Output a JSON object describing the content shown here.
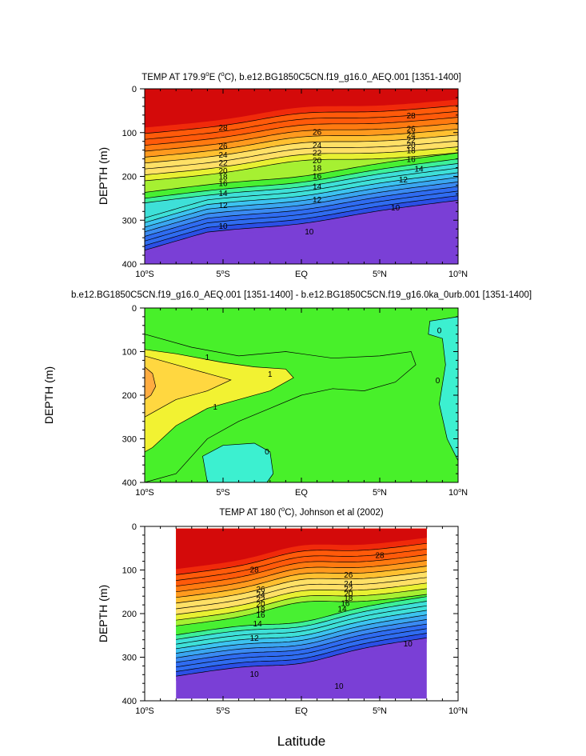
{
  "figure": {
    "xlabel": "Latitude",
    "x_ticks": [
      -10,
      -5,
      0,
      5,
      10
    ],
    "x_tick_labels": [
      "10°S",
      "5°S",
      "EQ",
      "5°N",
      "10°N"
    ],
    "y_ticks": [
      0,
      100,
      200,
      300,
      400
    ],
    "colors": {
      "background": "#ffffff",
      "contour_line": "#000000",
      "temp_levels": [
        "#7a3fd6",
        "#2b4fe6",
        "#2f6cf0",
        "#3a8af2",
        "#3aa6f0",
        "#3cc3f0",
        "#3ee0d8",
        "#3cf09a",
        "#48f032",
        "#a6f032",
        "#e8f032",
        "#ffe066",
        "#ffc030",
        "#ff9a1e",
        "#ff7a10",
        "#ff5a0a",
        "#f02a0a",
        "#d40a0a"
      ],
      "diff_levels": {
        "neg": "#3cf0d0",
        "zero": "#48f02a",
        "pos1": "#f2f232",
        "pos2": "#ffd740",
        "pos3": "#ffac40"
      }
    }
  },
  "chart_data": [
    {
      "type": "contour",
      "title_main": "TEMP AT 179.9",
      "title_sup": "o",
      "title_rest": "E (",
      "title_sup2": "o",
      "title_end": "C), b.e12.BG1850C5CN.f19_g16.0_AEQ.001 [1351-1400]",
      "ylabel": "DEPTH (m)",
      "xlim": [
        -10,
        10
      ],
      "ylim": [
        0,
        400
      ],
      "levels": [
        10,
        12,
        14,
        16,
        18,
        20,
        22,
        24,
        26,
        28
      ],
      "contour_labels": [
        {
          "value": "28",
          "x": -5,
          "y": 88
        },
        {
          "value": "26",
          "x": 1,
          "y": 98
        },
        {
          "value": "28",
          "x": 7,
          "y": 60
        },
        {
          "value": "26",
          "x": -5,
          "y": 130
        },
        {
          "value": "24",
          "x": -5,
          "y": 150
        },
        {
          "value": "22",
          "x": -5,
          "y": 168
        },
        {
          "value": "20",
          "x": -5,
          "y": 186
        },
        {
          "value": "18",
          "x": -5,
          "y": 200
        },
        {
          "value": "16",
          "x": -5,
          "y": 215
        },
        {
          "value": "14",
          "x": -5,
          "y": 237
        },
        {
          "value": "12",
          "x": -5,
          "y": 265
        },
        {
          "value": "10",
          "x": -5,
          "y": 312
        },
        {
          "value": "24",
          "x": 1,
          "y": 128
        },
        {
          "value": "22",
          "x": 1,
          "y": 145
        },
        {
          "value": "20",
          "x": 1,
          "y": 163
        },
        {
          "value": "18",
          "x": 1,
          "y": 180
        },
        {
          "value": "16",
          "x": 1,
          "y": 198
        },
        {
          "value": "14",
          "x": 1,
          "y": 222
        },
        {
          "value": "12",
          "x": 1,
          "y": 252
        },
        {
          "value": "10",
          "x": 0.5,
          "y": 325
        },
        {
          "value": "26",
          "x": 7,
          "y": 90
        },
        {
          "value": "24",
          "x": 7,
          "y": 104
        },
        {
          "value": "22",
          "x": 7,
          "y": 116
        },
        {
          "value": "20",
          "x": 7,
          "y": 128
        },
        {
          "value": "18",
          "x": 7,
          "y": 140
        },
        {
          "value": "16",
          "x": 7,
          "y": 160
        },
        {
          "value": "14",
          "x": 7.5,
          "y": 182
        },
        {
          "value": "12",
          "x": 6.5,
          "y": 206
        },
        {
          "value": "10",
          "x": 6,
          "y": 270
        }
      ]
    },
    {
      "type": "contour",
      "title": "b.e12.BG1850C5CN.f19_g16.0_AEQ.001 [1351-1400] - b.e12.BG1850C5CN.f19_g16.0ka_0urb.001 [1351-1400]",
      "ylabel": "DEPTH (m)",
      "xlim": [
        -10,
        10
      ],
      "ylim": [
        0,
        400
      ],
      "levels": [
        0,
        1
      ],
      "contour_labels": [
        {
          "value": "1",
          "x": -6,
          "y": 112
        },
        {
          "value": "1",
          "x": -2,
          "y": 150
        },
        {
          "value": "1",
          "x": -5.5,
          "y": 226
        },
        {
          "value": "0",
          "x": -2.2,
          "y": 328
        },
        {
          "value": "0",
          "x": 8.8,
          "y": 50
        },
        {
          "value": "0",
          "x": 8.7,
          "y": 165
        }
      ]
    },
    {
      "type": "contour",
      "title_main": "TEMP AT 180 (",
      "title_sup": "o",
      "title_end": "C), Johnson et al (2002)",
      "ylabel": "DEPTH (m)",
      "xlim": [
        -10,
        10
      ],
      "ylim": [
        0,
        400
      ],
      "data_xlim": [
        -8,
        8
      ],
      "data_ylim": [
        5,
        395
      ],
      "levels": [
        10,
        12,
        14,
        16,
        18,
        20,
        22,
        24,
        26,
        28
      ],
      "contour_labels": [
        {
          "value": "28",
          "x": -3,
          "y": 98
        },
        {
          "value": "28",
          "x": 5,
          "y": 65
        },
        {
          "value": "26",
          "x": -2.6,
          "y": 143
        },
        {
          "value": "24",
          "x": -2.6,
          "y": 155
        },
        {
          "value": "22",
          "x": -2.6,
          "y": 166
        },
        {
          "value": "20",
          "x": -2.6,
          "y": 177
        },
        {
          "value": "18",
          "x": -2.6,
          "y": 190
        },
        {
          "value": "16",
          "x": -2.6,
          "y": 202
        },
        {
          "value": "14",
          "x": -2.8,
          "y": 222
        },
        {
          "value": "12",
          "x": -3,
          "y": 255
        },
        {
          "value": "10",
          "x": -3,
          "y": 338
        },
        {
          "value": "26",
          "x": 3,
          "y": 110
        },
        {
          "value": "24",
          "x": 3,
          "y": 130
        },
        {
          "value": "22",
          "x": 3,
          "y": 142
        },
        {
          "value": "20",
          "x": 3,
          "y": 153
        },
        {
          "value": "18",
          "x": 3,
          "y": 163
        },
        {
          "value": "16",
          "x": 2.8,
          "y": 175
        },
        {
          "value": "14",
          "x": 2.6,
          "y": 188
        },
        {
          "value": "10",
          "x": 2.4,
          "y": 365
        },
        {
          "value": "10",
          "x": 6.8,
          "y": 268
        }
      ]
    }
  ]
}
